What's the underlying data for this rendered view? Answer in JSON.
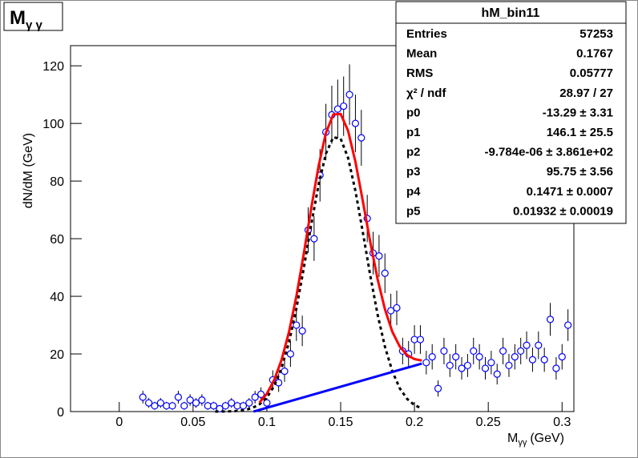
{
  "chart_data": {
    "type": "scatter",
    "title": {
      "main": "M",
      "sub": "γ γ"
    },
    "x_label": {
      "main": "M",
      "sub": "γγ",
      "unit": "(GeV)"
    },
    "y_label": "dN/dM (GeV)",
    "xlim": [
      -0.033,
      0.308
    ],
    "ylim": [
      0,
      127
    ],
    "xticks": [
      0,
      0.05,
      0.1,
      0.15,
      0.2,
      0.25,
      0.3
    ],
    "yticks": [
      0,
      20,
      40,
      60,
      80,
      100,
      120
    ],
    "series": [
      {
        "color": "#0000ff",
        "x": [
          0.016,
          0.02,
          0.024,
          0.028,
          0.032,
          0.036,
          0.04,
          0.044,
          0.048,
          0.052,
          0.056,
          0.06,
          0.064,
          0.068,
          0.072,
          0.076,
          0.08,
          0.084,
          0.088,
          0.092,
          0.096,
          0.1,
          0.104,
          0.108,
          0.112,
          0.116,
          0.12,
          0.124,
          0.128,
          0.132,
          0.136,
          0.14,
          0.144,
          0.148,
          0.152,
          0.156,
          0.16,
          0.164,
          0.168,
          0.172,
          0.176,
          0.18,
          0.184,
          0.188,
          0.192,
          0.196,
          0.2,
          0.204,
          0.208,
          0.212,
          0.216,
          0.22,
          0.224,
          0.228,
          0.232,
          0.236,
          0.24,
          0.244,
          0.248,
          0.252,
          0.256,
          0.26,
          0.264,
          0.268,
          0.272,
          0.276,
          0.28,
          0.284,
          0.288,
          0.292,
          0.296,
          0.3,
          0.304
        ],
        "values": [
          5,
          3,
          2,
          3,
          2,
          2,
          5,
          2,
          4,
          3,
          4,
          2,
          2,
          1,
          2,
          3,
          2,
          2,
          3,
          5,
          6,
          3,
          11,
          10,
          14,
          20,
          30,
          28,
          63,
          60,
          82,
          97,
          103,
          105,
          106,
          110,
          100,
          95,
          67,
          55,
          54,
          48,
          35,
          36,
          21,
          20,
          25,
          25,
          17,
          19,
          8,
          21,
          16,
          19,
          15,
          16,
          21,
          19,
          15,
          17,
          13,
          21,
          16,
          19,
          21,
          23,
          18,
          23,
          18,
          32,
          15,
          19,
          30
        ],
        "errors": [
          2.2,
          1.7,
          1.4,
          1.7,
          1.4,
          1.4,
          2.2,
          1.4,
          2,
          1.7,
          2,
          1.4,
          1.4,
          1,
          1.4,
          1.7,
          1.4,
          1.4,
          1.7,
          2.2,
          2.4,
          1.7,
          3.3,
          3.2,
          3.7,
          4.5,
          5.5,
          5.3,
          7.9,
          7.7,
          9.1,
          9.8,
          10.1,
          10.2,
          10.3,
          10.5,
          10,
          9.7,
          8.2,
          7.4,
          7.3,
          6.9,
          5.9,
          6,
          4.6,
          4.5,
          5,
          5,
          4.1,
          4.4,
          2.8,
          4.6,
          4,
          4.4,
          3.9,
          4,
          4.6,
          4.4,
          3.9,
          4.1,
          3.6,
          4.6,
          4,
          4.4,
          4.6,
          4.8,
          4.2,
          4.8,
          4.2,
          5.7,
          3.9,
          4.4,
          5.5
        ]
      },
      {
        "color": "#000000",
        "dashed": true,
        "x": [
          0.065,
          0.07,
          0.075,
          0.08,
          0.085,
          0.09,
          0.095,
          0.1,
          0.105,
          0.11,
          0.115,
          0.12,
          0.125,
          0.13,
          0.135,
          0.14,
          0.145,
          0.15,
          0.155,
          0.16,
          0.165,
          0.17,
          0.175,
          0.18,
          0.185,
          0.19,
          0.195,
          0.2,
          0.205
        ],
        "values": [
          0.01,
          0.03,
          0.09,
          0.23,
          0.54,
          1.21,
          2.51,
          4.9,
          8.9,
          15.2,
          24.1,
          35.8,
          49.7,
          64.7,
          78.7,
          89.5,
          95.2,
          94.7,
          88.1,
          76.6,
          62.3,
          47.4,
          33.7,
          22.5,
          14.0,
          8.1,
          4.4,
          2.25,
          1.07
        ]
      },
      {
        "color": "#0000ff",
        "x": [
          0.091,
          0.205
        ],
        "values": [
          0,
          16.66
        ]
      },
      {
        "color": "#ff0000",
        "x": [
          0.095,
          0.1,
          0.105,
          0.11,
          0.115,
          0.12,
          0.125,
          0.13,
          0.135,
          0.14,
          0.145,
          0.15,
          0.155,
          0.16,
          0.165,
          0.17,
          0.175,
          0.18,
          0.185,
          0.19,
          0.195,
          0.2,
          0.205
        ],
        "values": [
          3.1,
          6.2,
          11.0,
          18.0,
          27.6,
          40.0,
          54.7,
          70.4,
          85.1,
          96.7,
          103.1,
          103.3,
          97.5,
          86.7,
          73.1,
          59.0,
          46.0,
          35.5,
          27.7,
          22.6,
          19.6,
          18.2,
          17.7
        ]
      }
    ],
    "stats": {
      "title": "hM_bin11",
      "rows": [
        [
          "Entries",
          "57253"
        ],
        [
          "Mean",
          "0.1767"
        ],
        [
          "RMS",
          "0.05777"
        ],
        [
          "χ² / ndf",
          "28.97 / 27"
        ],
        [
          "p0",
          "-13.29 ± 3.31"
        ],
        [
          "p1",
          "146.1 ± 25.5"
        ],
        [
          "p2",
          "-9.784e-06 ± 3.861e+02"
        ],
        [
          "p3",
          "95.75 ± 3.56"
        ],
        [
          "p4",
          "0.1471 ± 0.0007"
        ],
        [
          "p5",
          "0.01932 ± 0.00019"
        ]
      ]
    }
  }
}
